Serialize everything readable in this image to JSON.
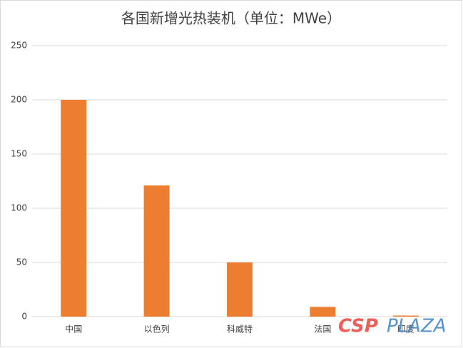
{
  "chart_data": {
    "type": "bar",
    "title": "各国新增光热装机（单位：MWe）",
    "categories": [
      "中国",
      "以色列",
      "科威特",
      "法国",
      "印度"
    ],
    "values": [
      200,
      121,
      50,
      9,
      1
    ],
    "color": "#ed7d31",
    "ylim": [
      0,
      250
    ],
    "yticks": [
      0,
      50,
      100,
      150,
      200,
      250
    ],
    "grid": true,
    "watermark": [
      "CSP",
      "PLAZA"
    ]
  }
}
